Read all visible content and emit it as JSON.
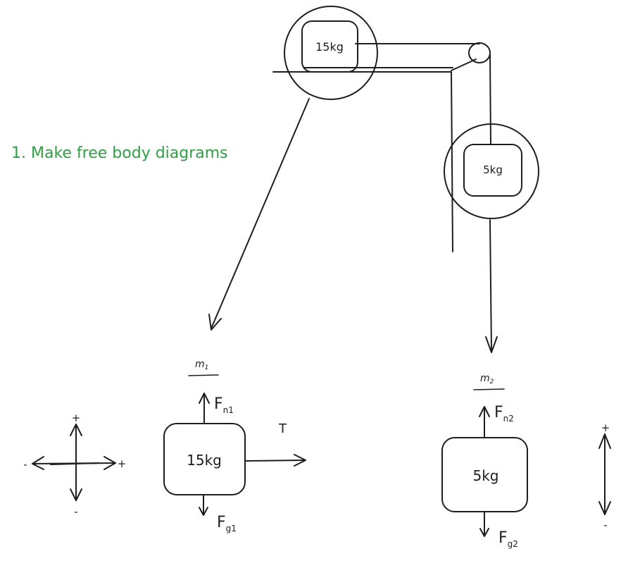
{
  "note": {
    "text": "1. Make free body diagrams",
    "color": "#2f9e44"
  },
  "setup": {
    "table_block_mass": "15kg",
    "hanging_block_mass": "5kg"
  },
  "fbd_1": {
    "title": "m",
    "title_sub": "1",
    "mass": "15kg",
    "normal": {
      "symbol": "F",
      "sub": "n1"
    },
    "gravity": {
      "symbol": "F",
      "sub": "g1"
    },
    "tension": "T"
  },
  "fbd_2": {
    "title": "m",
    "title_sub": "2",
    "mass": "5kg",
    "normal": {
      "symbol": "F",
      "sub": "n2"
    },
    "gravity": {
      "symbol": "F",
      "sub": "g2"
    }
  },
  "axes_1": {
    "plus_up": "+",
    "minus_down": "-",
    "minus_left": "-",
    "plus_right": "+"
  },
  "axes_2": {
    "plus_up": "+",
    "minus_down": "-"
  },
  "ink_color": "#1e1e1e"
}
